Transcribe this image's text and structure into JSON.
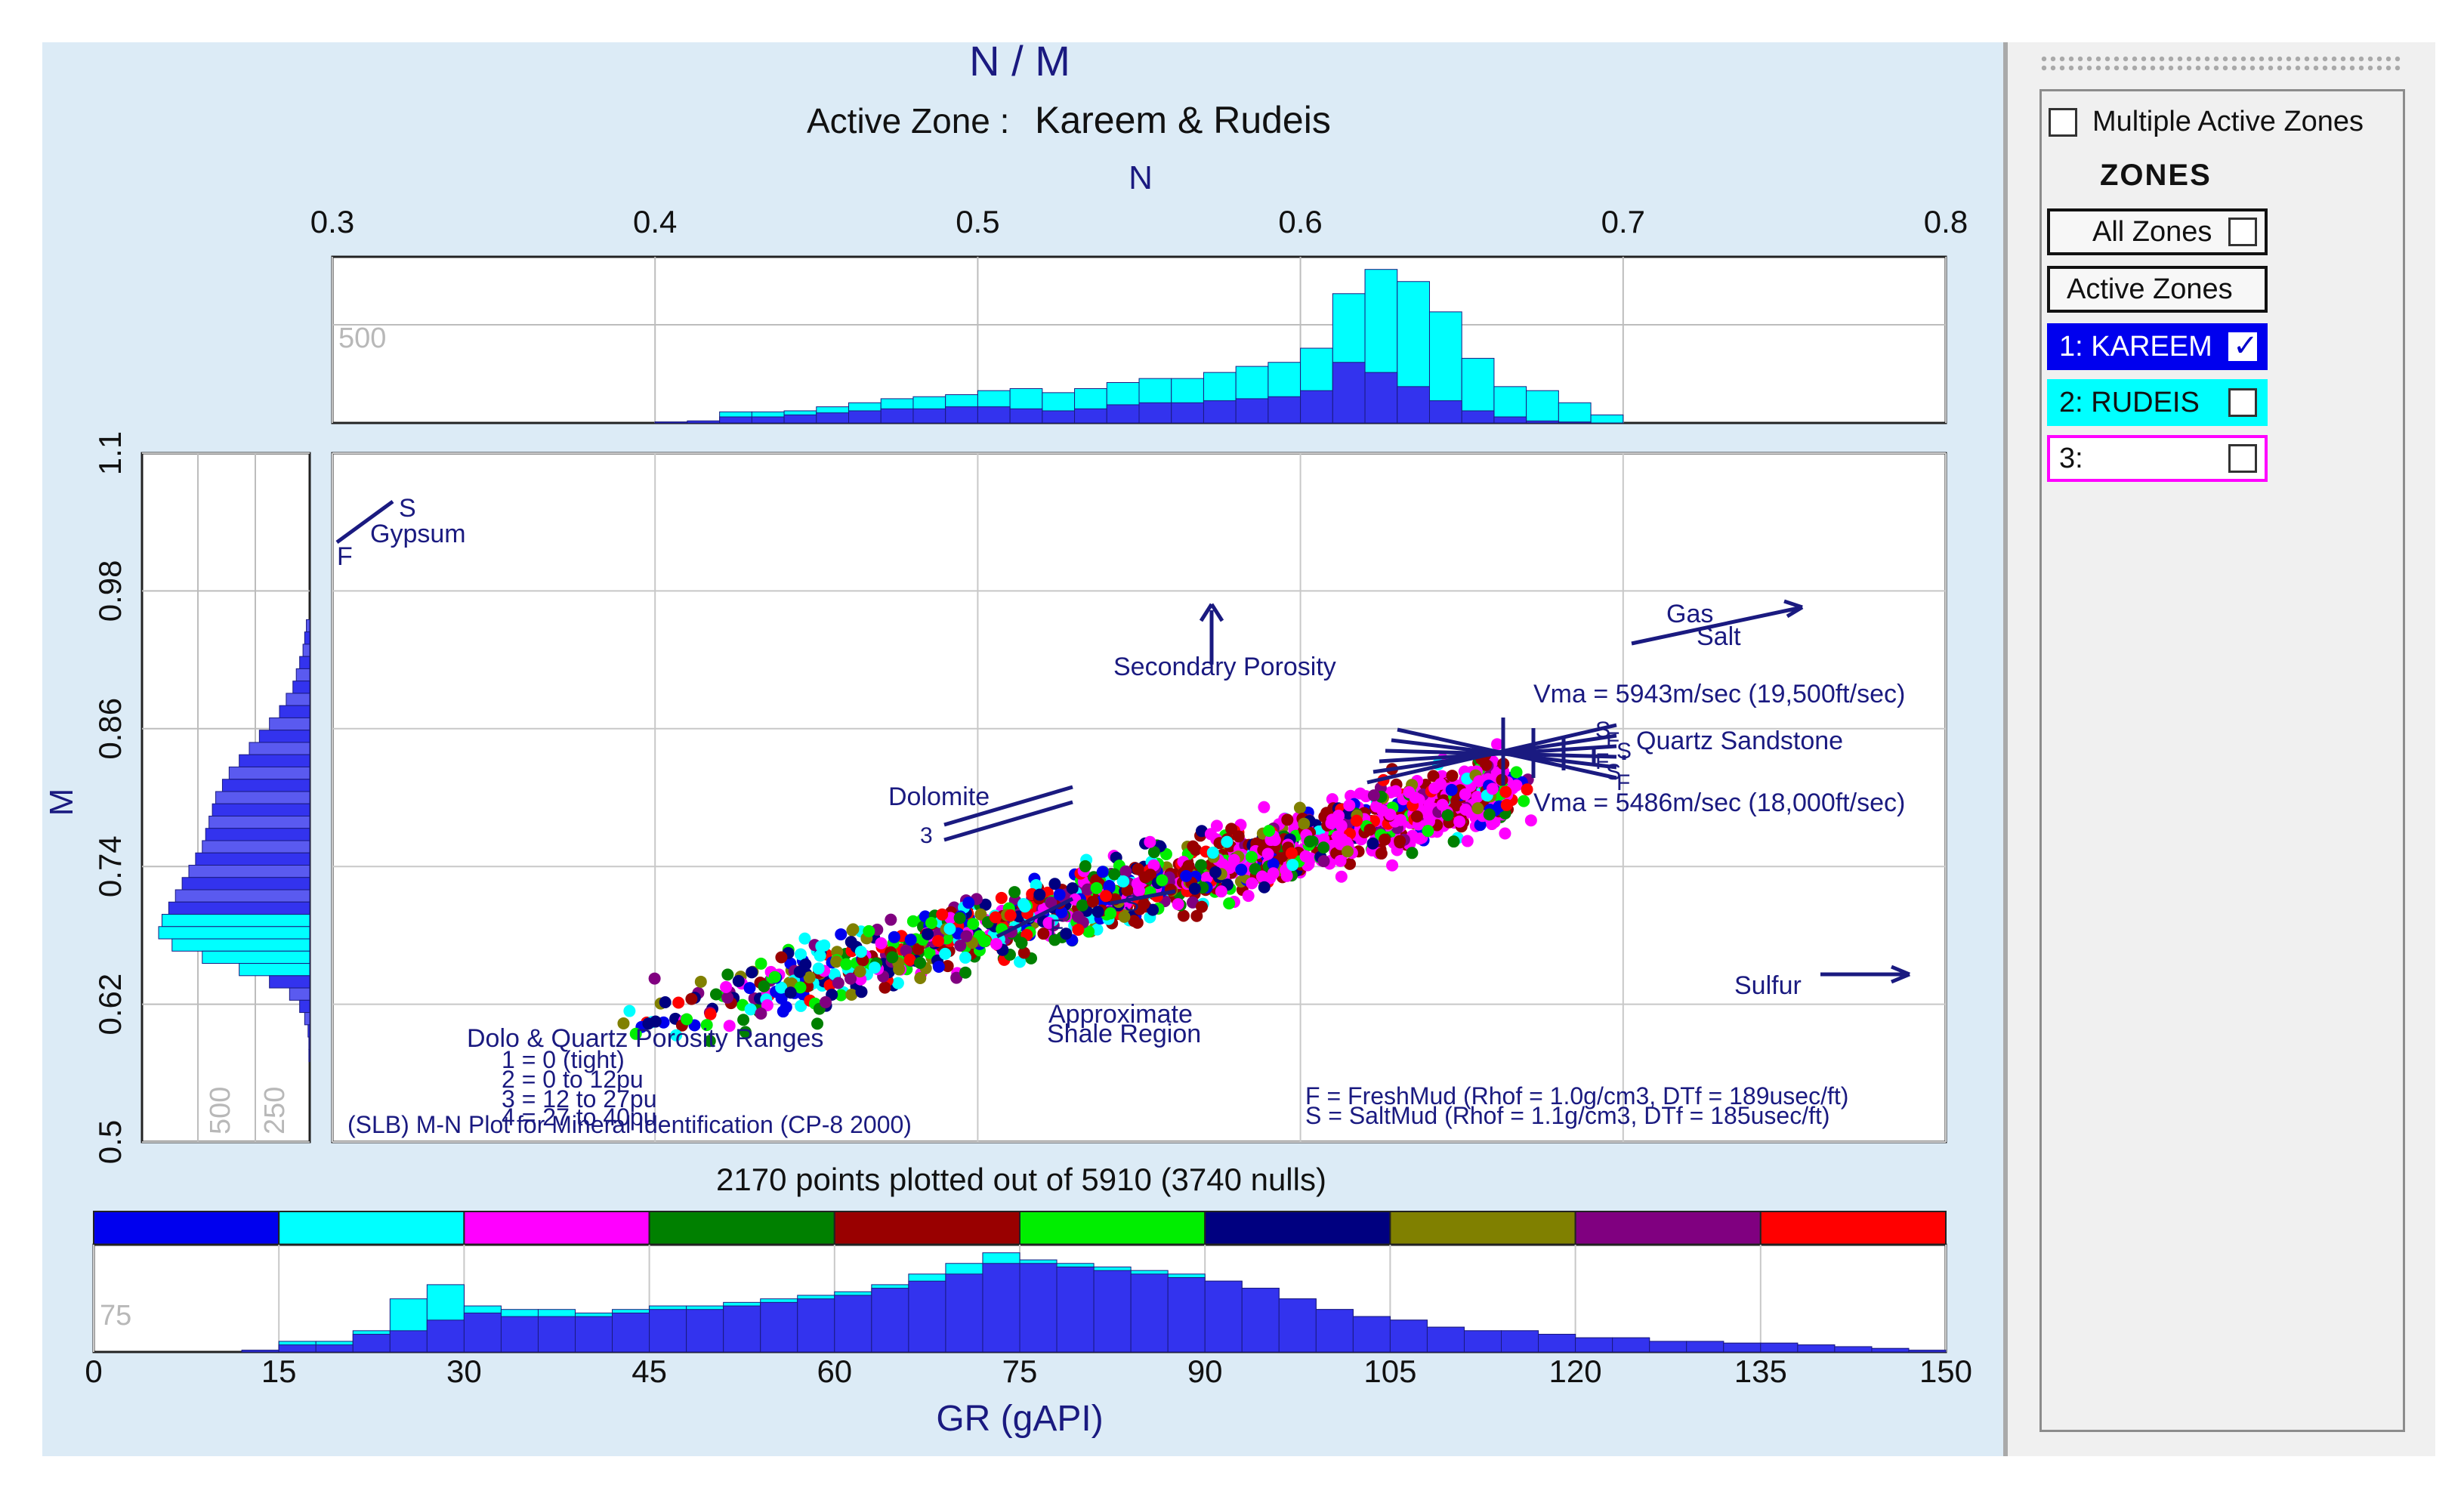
{
  "title": "N / M",
  "subtitle_prefix": "Active Zone : ",
  "subtitle_zone": "Kareem & Rudeis",
  "points_summary": "2170 points plotted out of 5910 (3740 nulls)",
  "colors": {
    "panel": "#dcebf6",
    "axis_text": "#1a1a80",
    "kareem": "#0000ee",
    "rudeis": "#00ffff",
    "zone3": "#ff00ff"
  },
  "sidebar": {
    "multiple_zones_label": "Multiple Active Zones",
    "zones_heading": "ZONES",
    "all_zones_label": "All Zones",
    "active_zones_label": "Active Zones",
    "zones": [
      {
        "label": "1: KAREEM",
        "checked": true,
        "bg": "#0000ee",
        "fg": "#ffffff"
      },
      {
        "label": "2: RUDEIS",
        "checked": false,
        "bg": "#00ffff",
        "fg": "#111111"
      },
      {
        "label": "3:",
        "checked": false,
        "bg": "#ffffff",
        "fg": "#111111"
      }
    ]
  },
  "annotations": {
    "gypsum": "Gypsum",
    "secondary_porosity": "Secondary Porosity",
    "gas": "Gas",
    "salt": "Salt",
    "vma_high": "Vma = 5943m/sec (19,500ft/sec)",
    "quartz_sandstone": "Quartz Sandstone",
    "vma_low": "Vma = 5486m/sec (18,000ft/sec)",
    "dolomite": "Dolomite",
    "sulfur": "Sulfur",
    "shale_1": "Approximate",
    "shale_2": "Shale Region",
    "porosity_title": "Dolo & Quartz Porosity Ranges",
    "porosity_1": "1 = 0 (tight)",
    "porosity_2": "2 = 0 to 12pu",
    "porosity_3": "3 = 12 to 27pu",
    "porosity_4": "4 = 27 to 40pu",
    "source": "(SLB) M-N Plot for Mineral Identification (CP-8 2000)",
    "fresh_mud": "F = FreshMud (Rhof = 1.0g/cm3, DTf = 189usec/ft)",
    "salt_mud": "S = SaltMud (Rhof = 1.1g/cm3, DTf = 185usec/ft)"
  },
  "chart_data": [
    {
      "type": "scatter",
      "xlabel": "N",
      "ylabel": "M",
      "xlim": [
        0.3,
        0.8
      ],
      "ylim": [
        0.5,
        1.1
      ],
      "x_ticks": [
        "0.3",
        "0.4",
        "0.5",
        "0.6",
        "0.7",
        "0.8"
      ],
      "y_ticks": [
        "0.5",
        "0.62",
        "0.74",
        "0.86",
        "0.98",
        "1.1"
      ],
      "point_colors": [
        "#0000ee",
        "#00ffff",
        "#ff00ff",
        "#008000",
        "#990000",
        "#00ee00",
        "#000080",
        "#808000",
        "#800080",
        "#ff0000"
      ],
      "point_cloud": {
        "n_min": 0.39,
        "n_max": 0.665,
        "m_at_nmin": 0.6,
        "m_at_nmax": 0.81,
        "spread": 0.045
      }
    },
    {
      "type": "bar",
      "title": "N histogram",
      "xlim": [
        0.3,
        0.8
      ],
      "y_tick": "500",
      "bins_start": 0.4,
      "bin_width": 0.01,
      "series": [
        {
          "name": "1: KAREEM",
          "values": [
            5,
            10,
            30,
            30,
            40,
            50,
            60,
            70,
            70,
            80,
            80,
            70,
            60,
            70,
            90,
            100,
            100,
            110,
            120,
            130,
            160,
            300,
            250,
            180,
            110,
            60,
            30,
            10,
            5,
            0,
            0,
            0,
            0,
            0,
            0
          ]
        },
        {
          "name": "2: RUDEIS",
          "values": [
            5,
            10,
            55,
            55,
            60,
            80,
            100,
            120,
            130,
            140,
            160,
            170,
            150,
            170,
            200,
            220,
            220,
            250,
            280,
            300,
            370,
            640,
            760,
            700,
            550,
            320,
            180,
            160,
            100,
            40,
            0,
            0,
            0,
            0,
            0
          ]
        }
      ]
    },
    {
      "type": "bar",
      "title": "M histogram",
      "ylim": [
        0.5,
        1.1
      ],
      "x_ticks": [
        "500",
        "250"
      ],
      "series": [
        {
          "name": "1: KAREEM / 2: RUDEIS",
          "values": [
            20,
            30,
            40,
            60,
            80,
            100,
            140,
            180,
            240,
            300,
            360,
            420,
            480,
            520,
            560,
            580,
            600,
            620,
            640,
            680,
            720,
            760,
            800,
            840,
            880,
            900,
            820,
            640,
            420,
            240,
            120,
            60,
            30,
            10,
            5,
            5
          ]
        }
      ]
    },
    {
      "type": "bar",
      "xlabel": "GR (gAPI)",
      "xlim": [
        0,
        150
      ],
      "x_ticks": [
        "0",
        "15",
        "30",
        "45",
        "60",
        "75",
        "90",
        "105",
        "120",
        "135",
        "150"
      ],
      "y_tick": "75",
      "color_scale": [
        "#0000ee",
        "#00ffff",
        "#ff00ff",
        "#008000",
        "#990000",
        "#00ee00",
        "#000080",
        "#808000",
        "#800080",
        "#ff0000"
      ],
      "bin_width": 3,
      "series": [
        {
          "name": "1: KAREEM",
          "values": [
            0,
            0,
            0,
            0,
            1,
            4,
            4,
            10,
            12,
            18,
            22,
            20,
            20,
            20,
            22,
            24,
            24,
            26,
            28,
            30,
            32,
            36,
            40,
            44,
            50,
            50,
            48,
            46,
            44,
            42,
            40,
            36,
            30,
            24,
            20,
            18,
            14,
            12,
            12,
            10,
            8,
            8,
            6,
            6,
            5,
            5,
            4,
            3,
            2,
            1
          ]
        },
        {
          "name": "2: RUDEIS",
          "values": [
            0,
            0,
            0,
            0,
            1,
            6,
            6,
            12,
            30,
            38,
            26,
            24,
            24,
            22,
            24,
            26,
            26,
            28,
            30,
            32,
            34,
            38,
            44,
            50,
            56,
            52,
            50,
            48,
            46,
            44,
            40,
            36,
            30,
            24,
            20,
            18,
            14,
            12,
            12,
            10,
            8,
            8,
            6,
            6,
            5,
            5,
            4,
            3,
            2,
            1
          ]
        }
      ]
    }
  ]
}
